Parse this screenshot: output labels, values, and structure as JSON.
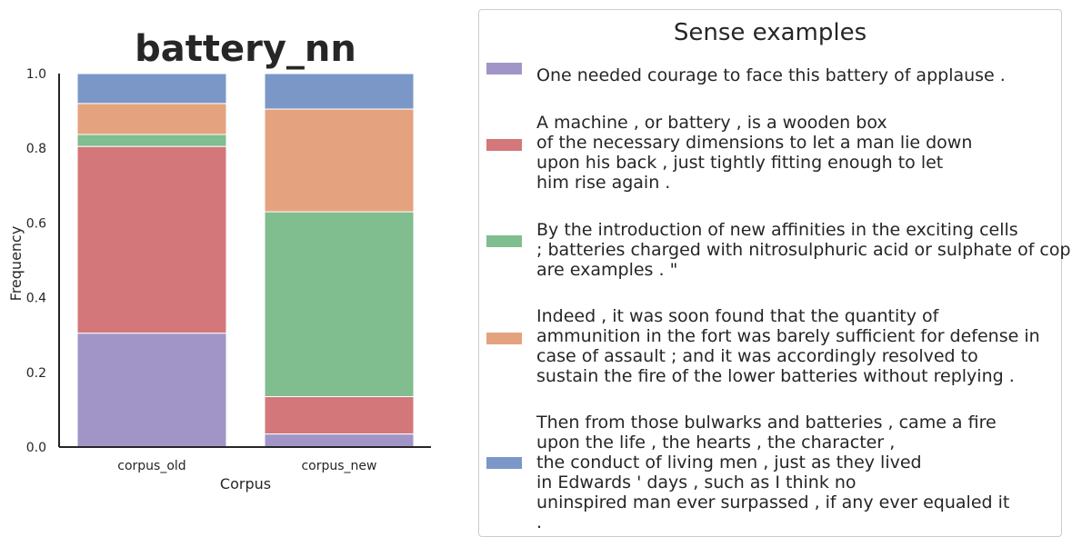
{
  "chart_data": {
    "type": "bar",
    "stacked": true,
    "title": "battery_nn",
    "xlabel": "Corpus",
    "ylabel": "Frequency",
    "ylim": [
      0,
      1.0
    ],
    "yticks": [
      "0.0",
      "0.2",
      "0.4",
      "0.6",
      "0.8",
      "1.0"
    ],
    "categories": [
      "corpus_old",
      "corpus_new"
    ],
    "grid": false,
    "legend_placement": "right",
    "series": [
      {
        "color": "#a195c7",
        "values": [
          0.305,
          0.035
        ]
      },
      {
        "color": "#d3777a",
        "values": [
          0.5,
          0.1
        ]
      },
      {
        "color": "#80bd8f",
        "values": [
          0.032,
          0.495
        ]
      },
      {
        "color": "#e4a37e",
        "values": [
          0.083,
          0.275
        ]
      },
      {
        "color": "#7b97c8",
        "values": [
          0.08,
          0.095
        ]
      }
    ]
  },
  "legend": {
    "title": "Sense examples",
    "entries": [
      {
        "color": "#a195c7",
        "text": "One needed courage to face this battery of applause ."
      },
      {
        "color": "#d3777a",
        "text": "A machine , or battery , is a wooden box\nof the necessary dimensions to let a man lie down\nupon his back , just tightly fitting enough to let\nhim rise again ."
      },
      {
        "color": "#80bd8f",
        "text": "By the introduction of new affinities in the exciting cells\n; batteries charged with nitrosulphuric acid or sulphate of copper\nare examples . \""
      },
      {
        "color": "#e4a37e",
        "text": "Indeed , it was soon found that the quantity of\nammunition in the fort was barely sufficient for defense in\ncase of assault ; and it was accordingly resolved to\nsustain the fire of the lower batteries without replying ."
      },
      {
        "color": "#7b97c8",
        "text": "Then from those bulwarks and batteries , came a fire\nupon the life , the hearts , the character ,\nthe conduct of living men , just as they lived\nin Edwards ' days , such as I think no\nuninspired man ever surpassed , if any ever equaled it\n."
      }
    ]
  }
}
